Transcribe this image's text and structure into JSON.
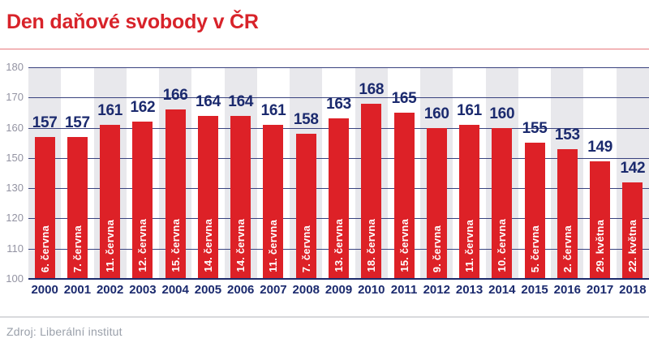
{
  "title": "Den daňové svobody v ČR",
  "source": "Zdroj: Liberální institut",
  "colors": {
    "accent_red": "#d8232a",
    "bar_red": "#dd2127",
    "navy": "#1b2a6e",
    "gridline": "#39427e",
    "stripe_gray": "#e8e8ec",
    "ytick_gray": "#9393a2",
    "source_gray": "#9aa0aa",
    "title_rule_red": "#e8777b",
    "footer_rule_gray": "#d9dadd"
  },
  "chart_data": {
    "type": "bar",
    "title": "Den daňové svobody v ČR",
    "categories": [
      "2000",
      "2001",
      "2002",
      "2003",
      "2004",
      "2005",
      "2006",
      "2007",
      "2008",
      "2009",
      "2010",
      "2011",
      "2012",
      "2013",
      "2014",
      "2015",
      "2016",
      "2017",
      "2018"
    ],
    "values": [
      157,
      157,
      161,
      162,
      166,
      164,
      164,
      161,
      158,
      163,
      168,
      165,
      160,
      161,
      160,
      155,
      153,
      149,
      142
    ],
    "bar_labels": [
      "6. června",
      "7. června",
      "11. června",
      "12. června",
      "15. června",
      "14. června",
      "14. června",
      "11. června",
      "7. června",
      "13. června",
      "18. června",
      "15. června",
      "9. června",
      "11. června",
      "10. června",
      "5. června",
      "2. června",
      "29. května",
      "22. května"
    ],
    "value_labels_position": "above-bars",
    "bar_label_style": "vertical-white-inside-bar",
    "y_ticks_shown": [
      "180",
      "170",
      "160",
      "150",
      "130",
      "120",
      "110",
      "100"
    ],
    "ylim": [
      100,
      180
    ],
    "xlabel": "",
    "ylabel": "",
    "grid": true,
    "legend": false,
    "background_stripes": "alternating light-gray columns behind even-index bars"
  }
}
